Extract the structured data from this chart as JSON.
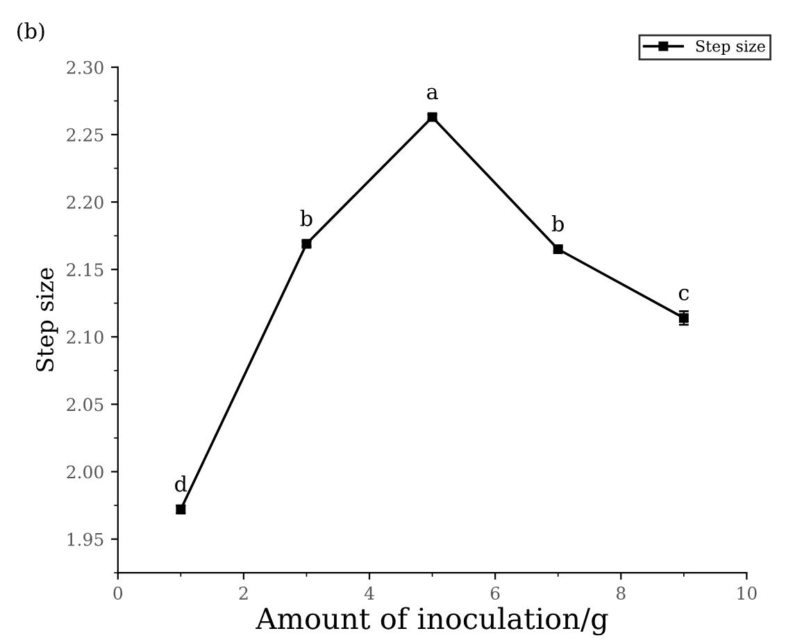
{
  "chart_data": {
    "type": "line",
    "title": "(b)",
    "xlabel": "Amount of inoculation/g",
    "ylabel": "Step size",
    "x": [
      1,
      3,
      5,
      7,
      9
    ],
    "series": [
      {
        "name": "Step size",
        "color": "#000000",
        "values": [
          1.972,
          2.169,
          2.263,
          2.165,
          2.114
        ],
        "errors": [
          0.003,
          0.002,
          0.002,
          0.002,
          0.005
        ]
      }
    ],
    "xlim": [
      0,
      10
    ],
    "xticks": [
      0,
      2,
      4,
      6,
      8,
      10
    ],
    "ylim": [
      1.925,
      2.3
    ],
    "yticks": [
      {
        "value": 1.95,
        "label": "1.95"
      },
      {
        "value": 2.0,
        "label": "2.00"
      },
      {
        "value": 2.05,
        "label": "2.05"
      },
      {
        "value": 2.1,
        "label": "2.10"
      },
      {
        "value": 2.15,
        "label": "2.15"
      },
      {
        "value": 2.2,
        "label": "2.20"
      },
      {
        "value": 2.25,
        "label": "2.25"
      },
      {
        "value": 2.3,
        "label": "2.30"
      }
    ],
    "annotations": [
      {
        "text": "d",
        "x": 1,
        "y": 1.972
      },
      {
        "text": "b",
        "x": 3,
        "y": 2.169
      },
      {
        "text": "a",
        "x": 5,
        "y": 2.263
      },
      {
        "text": "b",
        "x": 7,
        "y": 2.165
      },
      {
        "text": "c",
        "x": 9,
        "y": 2.114
      }
    ],
    "marker": "square",
    "line_style": "solid",
    "grid": false,
    "legend": "top right"
  }
}
